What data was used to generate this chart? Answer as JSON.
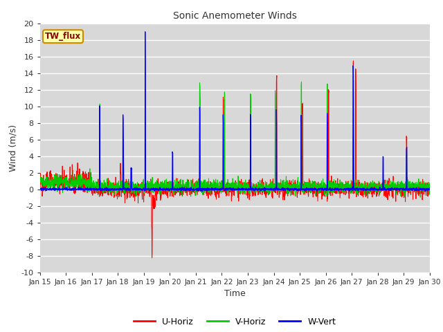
{
  "title": "Sonic Anemometer Winds",
  "xlabel": "Time",
  "ylabel": "Wind (m/s)",
  "ylim": [
    -10,
    20
  ],
  "yticks": [
    -10,
    -8,
    -6,
    -4,
    -2,
    0,
    2,
    4,
    6,
    8,
    10,
    12,
    14,
    16,
    18,
    20
  ],
  "date_start": 15,
  "date_end": 30,
  "xtick_labels": [
    "Jan 15",
    "Jan 16",
    "Jan 17",
    "Jan 18",
    "Jan 19",
    "Jan 20",
    "Jan 21",
    "Jan 22",
    "Jan 23",
    "Jan 24",
    "Jan 25",
    "Jan 26",
    "Jan 27",
    "Jan 28",
    "Jan 29",
    "Jan 30"
  ],
  "legend_label": "TW_flux",
  "series_names": [
    "U-Horiz",
    "V-Horiz",
    "W-Vert"
  ],
  "series_colors": [
    "#ff0000",
    "#00cc00",
    "#0000ff"
  ],
  "fig_bg_color": "#ffffff",
  "plot_bg_color": "#d8d8d8",
  "grid_color": "#ffffff"
}
